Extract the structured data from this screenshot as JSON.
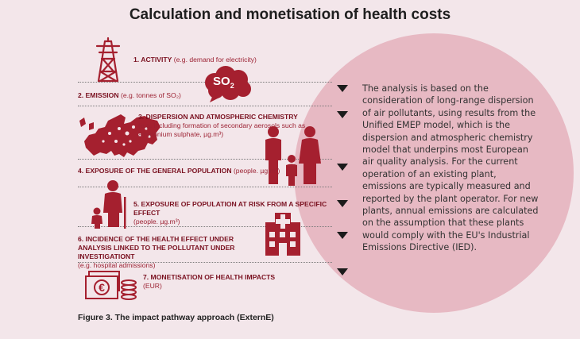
{
  "title": "Calculation and monetisation of health costs",
  "steps": [
    {
      "label": "1. ACTIVITY",
      "detail": "(e.g. demand for electricity)"
    },
    {
      "label": "2. EMISSION",
      "detail": "(e.g. tonnes of SO₂)"
    },
    {
      "label": "3. DISPERSION AND ATMOSPHERIC CHEMISTRY",
      "detail": "(e.g. including formation of secondary aerosols such as ammonium sulphate, µg.m³)"
    },
    {
      "label": "4. EXPOSURE OF THE GENERAL POPULATION",
      "detail": "(people. µg.m³)"
    },
    {
      "label": "5. EXPOSURE OF POPULATION AT RISK FROM A SPECIFIC EFFECT",
      "detail": "(people. µg.m³)"
    },
    {
      "label": "6. INCIDENCE OF THE HEALTH EFFECT UNDER ANALYSIS LINKED TO THE POLLUTANT UNDER INVESTIGATIONT",
      "detail": "(e.g. hospital admissions)"
    },
    {
      "label": "7. MONETISATION OF HEALTH IMPACTS",
      "detail": "(EUR)"
    }
  ],
  "cloud_text": "SO",
  "cloud_sub": "2",
  "description": "The analysis is based on the consideration of long-range dispersion of air pollutants, using results from the Unified EMEP model, which is the dispersion and atmospheric chemistry model that underpins most European air quality analysis. For the current operation of an existing plant, emissions are typically measured and reported by the plant operator. For new plants, annual emissions are calculated on the assumption that these plants would comply with the EU's Industrial Emissions Directive (IED).",
  "caption": "Figure 3. The impact pathway approach (ExternE)",
  "colors": {
    "accent": "#a5202f",
    "circle": "#e7b9c3",
    "background": "#f3e6ea"
  },
  "icons": [
    "pylon-icon",
    "cloud-icon",
    "europe-map-icon",
    "family-icon",
    "elderly-child-icon",
    "hospital-icon",
    "money-icon"
  ]
}
